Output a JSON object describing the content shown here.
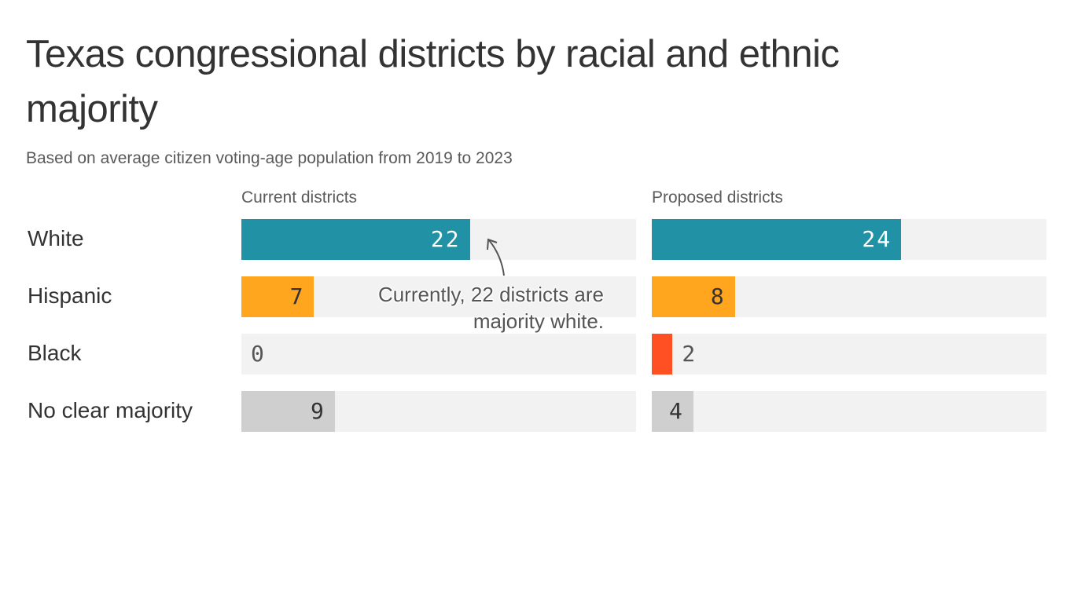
{
  "chart_data": {
    "type": "bar",
    "orientation": "horizontal",
    "title": "Texas congressional districts by racial and ethnic majority",
    "subtitle": "Based on average citizen voting-age population from 2019 to 2023",
    "categories": [
      "White",
      "Hispanic",
      "Black",
      "No clear majority"
    ],
    "xlim": [
      0,
      38
    ],
    "grid": false,
    "colors": {
      "White": "#2191a6",
      "Hispanic": "#ffa51e",
      "Black": "#ff5023",
      "No clear majority": "#cfcfcf",
      "track": "#f2f2f2"
    },
    "panels": [
      {
        "name": "Current districts",
        "values": [
          22,
          7,
          0,
          9
        ]
      },
      {
        "name": "Proposed districts",
        "values": [
          24,
          8,
          2,
          4
        ]
      }
    ],
    "annotation": "Currently, 22 districts are majority white."
  }
}
